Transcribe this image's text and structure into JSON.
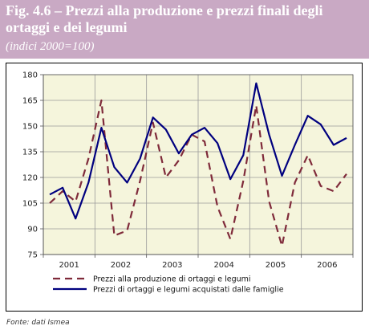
{
  "header": {
    "title": "Fig. 4.6 – Prezzi alla produzione e prezzi finali degli ortaggi e dei legumi",
    "subtitle": "(indici 2000=100)",
    "background": "#c9a9c4"
  },
  "source": "Fonte: dati Ismea",
  "chart_data": {
    "type": "line",
    "plot_background": "#f5f5dc",
    "grid": true,
    "legend_position": "bottom",
    "ylim": [
      75,
      180
    ],
    "yticks": [
      75,
      90,
      105,
      120,
      135,
      150,
      165,
      180
    ],
    "x_labels": [
      "2001",
      "2002",
      "2003",
      "2004",
      "2005",
      "2006"
    ],
    "x_count": 24,
    "series": [
      {
        "name": "Prezzi alla produzione di ortaggi e legumi",
        "color": "#7f2a3a",
        "style": "dashed",
        "values": [
          105,
          112,
          106,
          131,
          165,
          86,
          89,
          118,
          152,
          120,
          130,
          145,
          141,
          103,
          84,
          118,
          162,
          106,
          80,
          117,
          133,
          115,
          112,
          122
        ]
      },
      {
        "name": "Prezzi di ortaggi e legumi acquistati dalle famiglie",
        "color": "#00007f",
        "style": "solid",
        "values": [
          110,
          114,
          96,
          117,
          149,
          126,
          117,
          131,
          155,
          148,
          134,
          145,
          149,
          140,
          119,
          133,
          175,
          145,
          121,
          139,
          156,
          151,
          139,
          143
        ]
      }
    ]
  }
}
